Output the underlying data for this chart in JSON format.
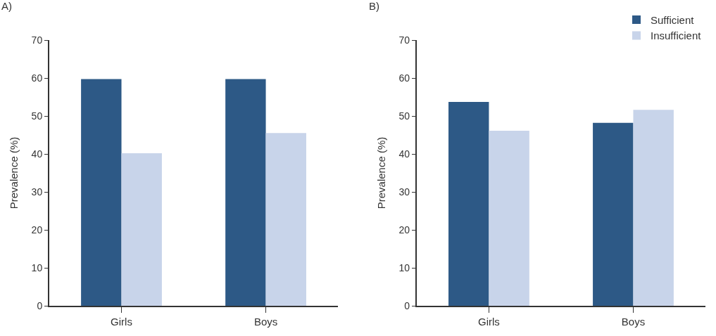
{
  "chart_data": [
    {
      "type": "bar",
      "title": "A)",
      "ylabel": "Prevalence (%)",
      "categories": [
        "Girls",
        "Boys"
      ],
      "series": [
        {
          "color": "#2d5986",
          "values": [
            59.7,
            59.7
          ]
        },
        {
          "color": "#c8d4ea",
          "values": [
            40.2,
            45.5
          ]
        }
      ],
      "ylim": [
        0,
        70
      ],
      "yticks": [
        0,
        10,
        20,
        30,
        40,
        50,
        60,
        70
      ]
    },
    {
      "type": "bar",
      "title": "B)",
      "ylabel": "Prevalence (%)",
      "categories": [
        "Girls",
        "Boys"
      ],
      "series": [
        {
          "name": "Sufficient",
          "color": "#2d5986",
          "values": [
            53.7,
            48.2
          ]
        },
        {
          "name": "Insufficient",
          "color": "#c8d4ea",
          "values": [
            46.1,
            51.6
          ]
        }
      ],
      "ylim": [
        0,
        70
      ],
      "yticks": [
        0,
        10,
        20,
        30,
        40,
        50,
        60,
        70
      ],
      "legend": "top right"
    }
  ]
}
